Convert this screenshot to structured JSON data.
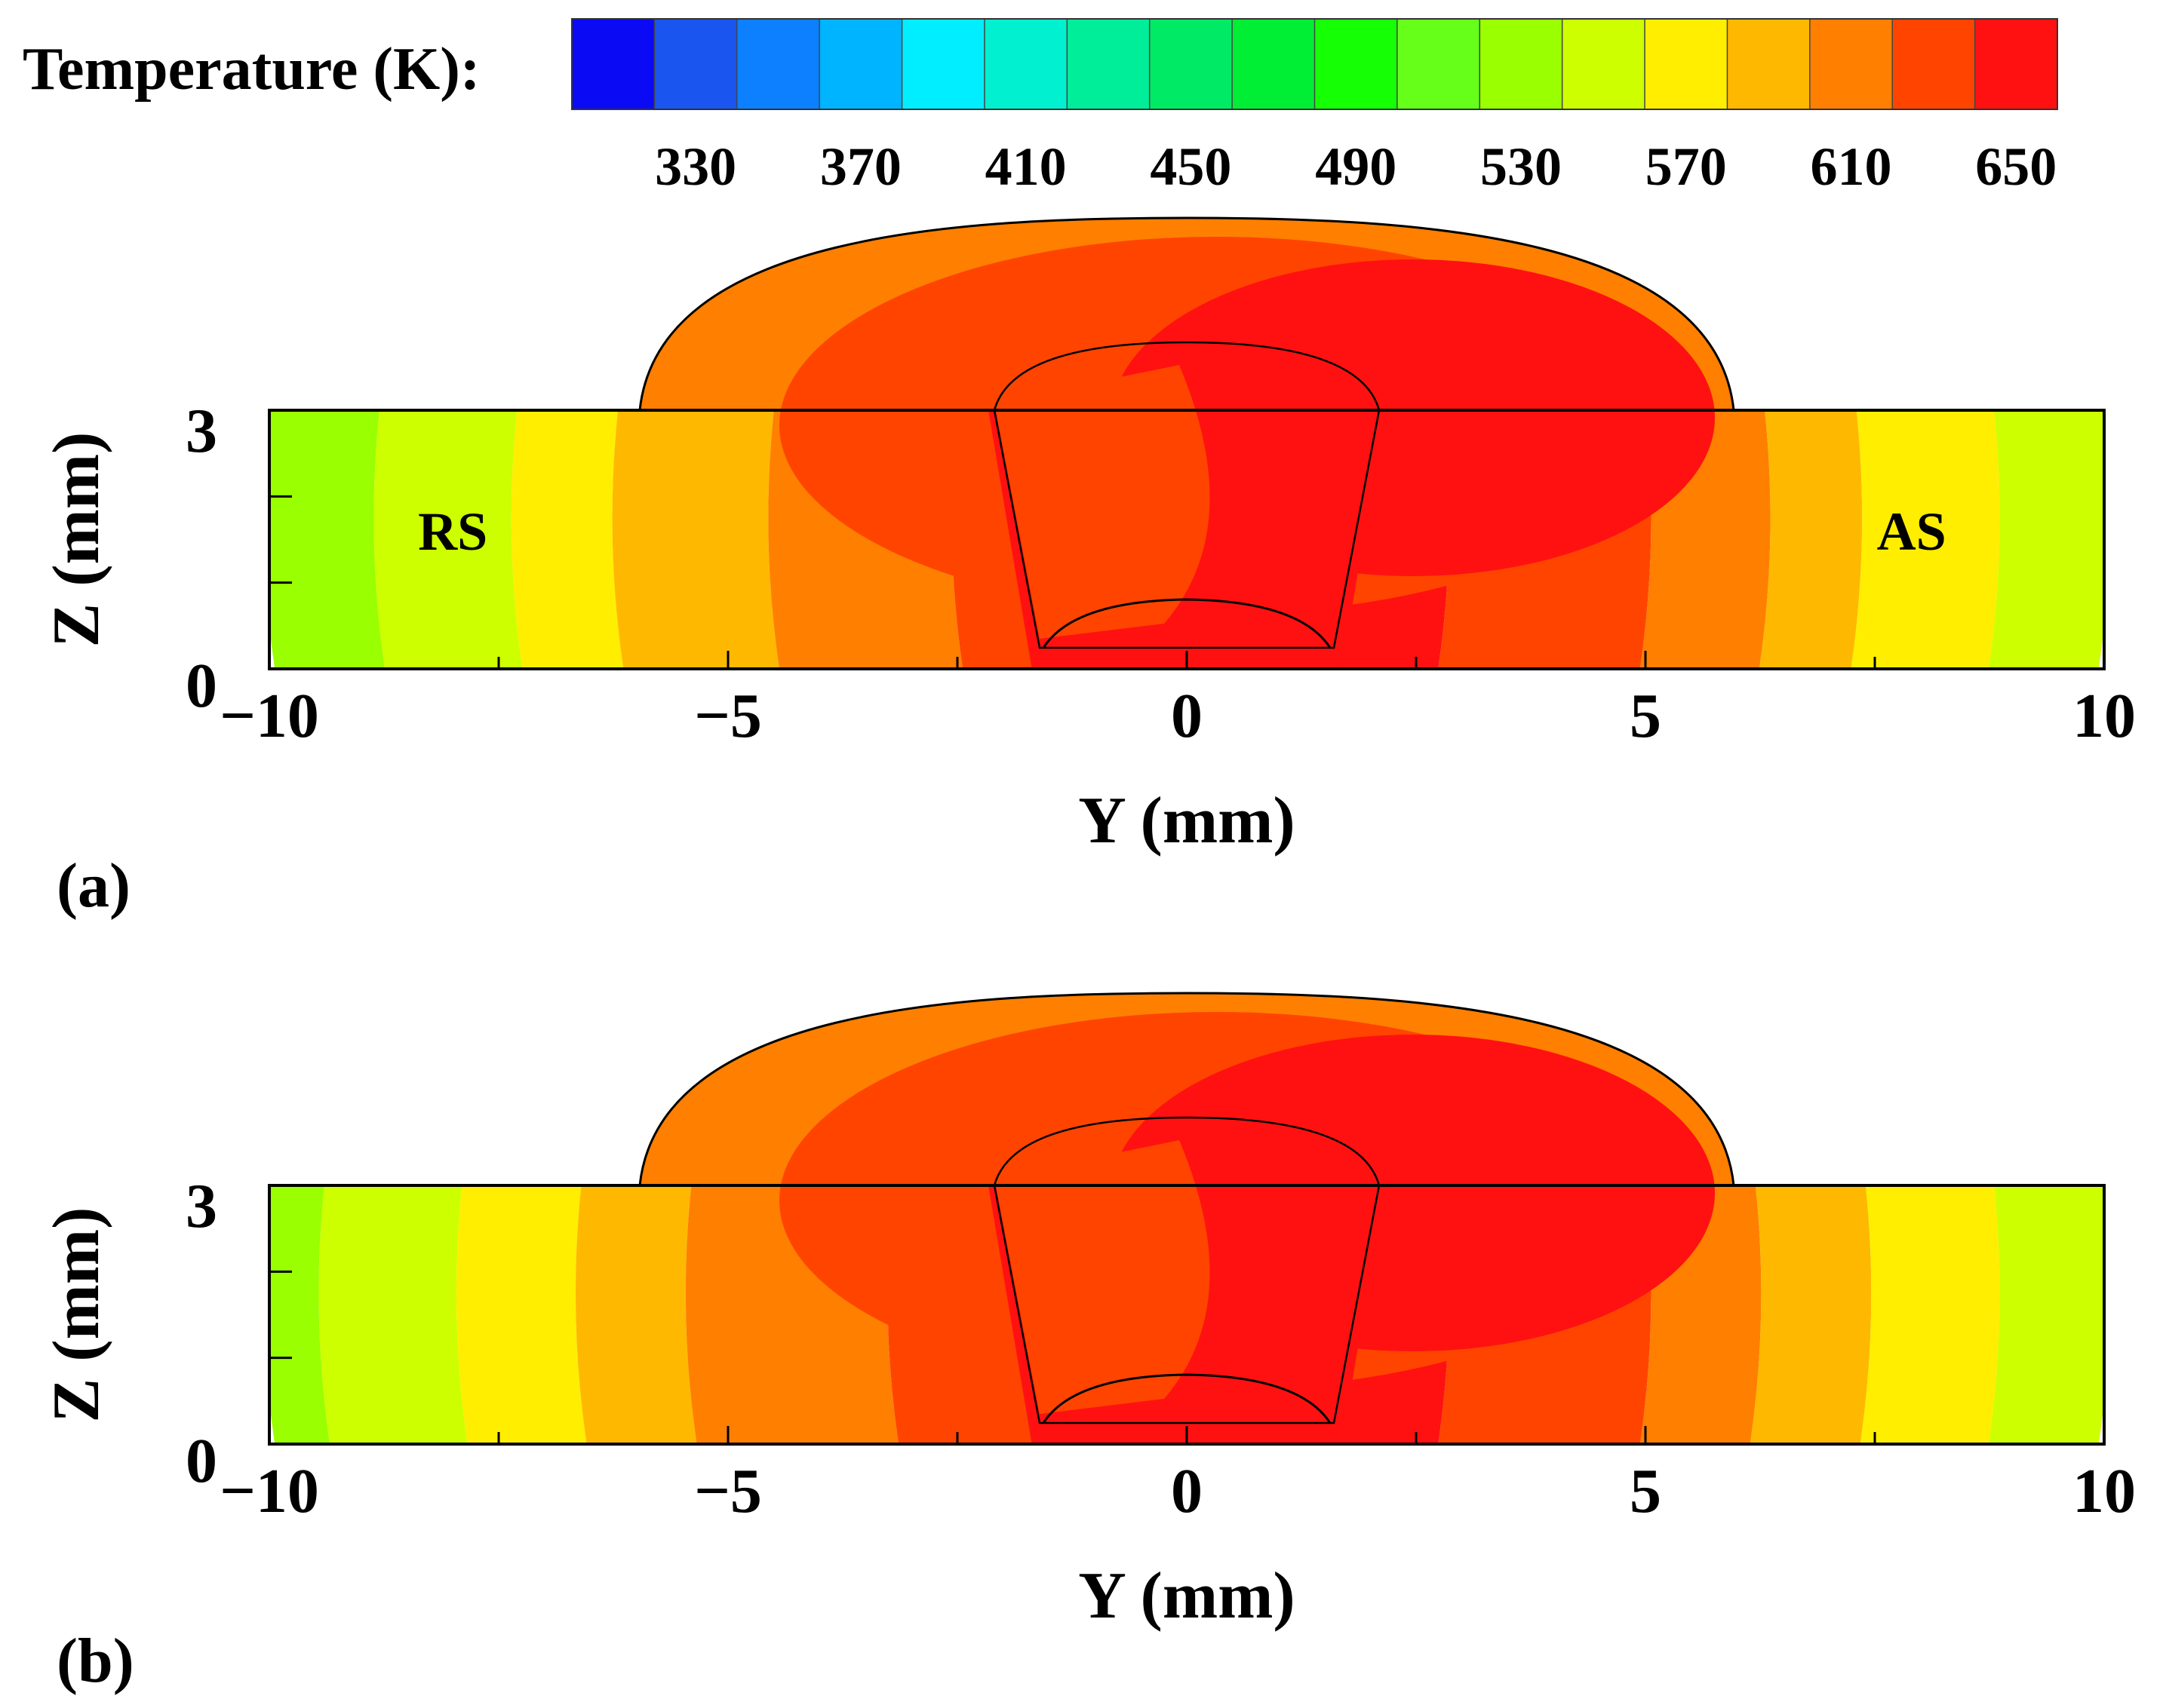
{
  "chart_data": {
    "type": "heatmap",
    "subtype": "temperature-contour-cross-section",
    "colorbar": {
      "title": "Temperature (K):",
      "range": [
        310,
        650
      ],
      "levels": [
        310,
        330,
        350,
        370,
        390,
        410,
        430,
        450,
        470,
        490,
        510,
        530,
        550,
        570,
        590,
        610,
        630,
        650
      ],
      "ticks": [
        330,
        370,
        410,
        450,
        490,
        530,
        570,
        610,
        650
      ],
      "colors": [
        "#0a0af5",
        "#1a55f0",
        "#0d80ff",
        "#00b4ff",
        "#00eeff",
        "#00f0d0",
        "#00ee9a",
        "#00ea66",
        "#00ee33",
        "#15ff05",
        "#66ff1a",
        "#9aff00",
        "#cdff00",
        "#ffee00",
        "#ffb800",
        "#ff7f00",
        "#ff4400",
        "#ff1111"
      ]
    },
    "panels": [
      {
        "tag": "(a)",
        "xlabel": "Y (mm)",
        "ylabel": "Z (mm)",
        "xlim": [
          -10,
          10
        ],
        "ylim": [
          0,
          3
        ],
        "xticks": [
          "−10",
          "−5",
          "0",
          "5",
          "10"
        ],
        "yticks": [
          "0",
          "3"
        ],
        "annotations": [
          "RS",
          "AS"
        ],
        "side_bands": [
          {
            "y_from": -10,
            "y_to": -8.8,
            "temp_K": 530
          },
          {
            "y_from": -8.8,
            "y_to": -7.3,
            "temp_K": 550
          },
          {
            "y_from": -7.3,
            "y_to": -6.2,
            "temp_K": 570
          },
          {
            "y_from": -6.2,
            "y_to": -4.5,
            "temp_K": 590
          },
          {
            "y_from": -4.5,
            "y_to": -2.5,
            "temp_K": 610
          },
          {
            "y_from": -2.5,
            "y_to": 1.2,
            "temp_K": 630
          },
          {
            "y_from": 1.2,
            "y_to": 2.8,
            "temp_K": 650
          },
          {
            "y_from": 2.8,
            "y_to": 5.0,
            "temp_K": 630
          },
          {
            "y_from": 5.0,
            "y_to": 6.3,
            "temp_K": 610
          },
          {
            "y_from": 6.3,
            "y_to": 7.3,
            "temp_K": 590
          },
          {
            "y_from": 7.3,
            "y_to": 8.8,
            "temp_K": 570
          },
          {
            "y_from": 8.8,
            "y_to": 10,
            "temp_K": 550
          }
        ],
        "shoulder": {
          "outer_K": 610,
          "inner_K": 630,
          "hot_K": 650
        },
        "pin_zone": {
          "left_K": 630,
          "right_K": 650
        }
      },
      {
        "tag": "(b)",
        "xlabel": "Y (mm)",
        "ylabel": "Z (mm)",
        "xlim": [
          -10,
          10
        ],
        "ylim": [
          0,
          3
        ],
        "xticks": [
          "−10",
          "−5",
          "0",
          "5",
          "10"
        ],
        "yticks": [
          "0",
          "3"
        ],
        "annotations": [],
        "side_bands": [
          {
            "y_from": -10,
            "y_to": -9.4,
            "temp_K": 530
          },
          {
            "y_from": -9.4,
            "y_to": -7.9,
            "temp_K": 550
          },
          {
            "y_from": -7.9,
            "y_to": -6.6,
            "temp_K": 570
          },
          {
            "y_from": -6.6,
            "y_to": -5.4,
            "temp_K": 590
          },
          {
            "y_from": -5.4,
            "y_to": -3.2,
            "temp_K": 610
          },
          {
            "y_from": -3.2,
            "y_to": -1.5,
            "temp_K": 630
          },
          {
            "y_from": -1.5,
            "y_to": 2.8,
            "temp_K": 650
          },
          {
            "y_from": 2.8,
            "y_to": 5.0,
            "temp_K": 630
          },
          {
            "y_from": 5.0,
            "y_to": 6.2,
            "temp_K": 610
          },
          {
            "y_from": 6.2,
            "y_to": 7.4,
            "temp_K": 590
          },
          {
            "y_from": 7.4,
            "y_to": 8.8,
            "temp_K": 570
          },
          {
            "y_from": 8.8,
            "y_to": 10,
            "temp_K": 550
          }
        ],
        "shoulder": {
          "outer_K": 610,
          "inner_K": 630,
          "hot_K": 650
        },
        "pin_zone": {
          "left_K": 630,
          "right_K": 650
        }
      }
    ]
  }
}
